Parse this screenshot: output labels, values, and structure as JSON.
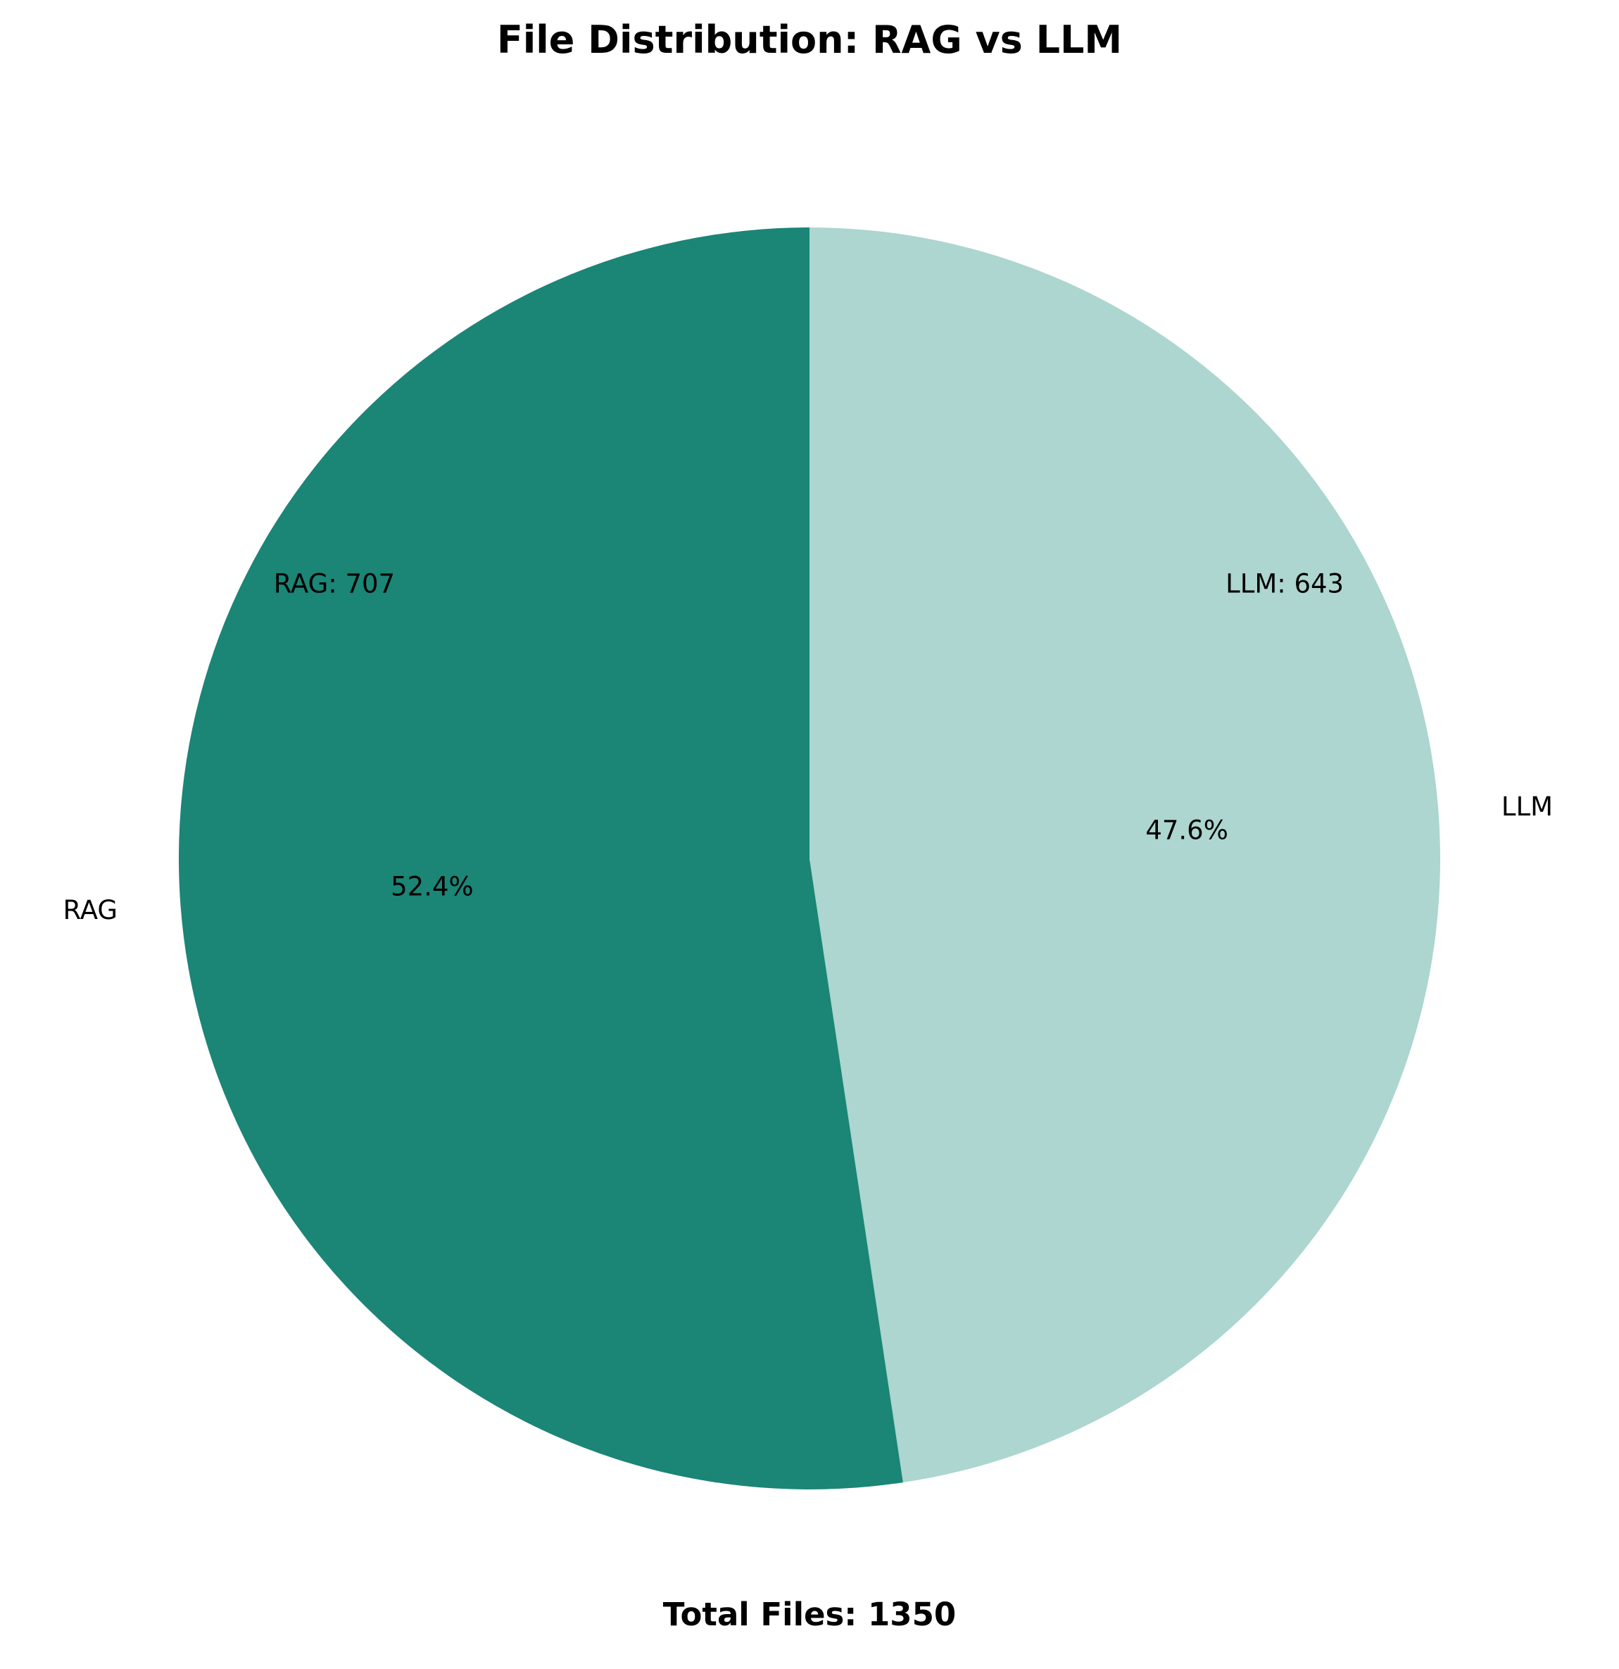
{
  "chart_data": {
    "type": "pie",
    "title": "File Distribution: RAG vs LLM",
    "footer": "Total Files: 1350",
    "start_angle_deg": 90,
    "direction": "counterclockwise",
    "slices": [
      {
        "label": "RAG",
        "value": 707,
        "percent_label": "52.4%",
        "count_label": "RAG: 707",
        "color": "#1b8576"
      },
      {
        "label": "LLM",
        "value": 643,
        "percent_label": "47.6%",
        "count_label": "LLM: 643",
        "color": "#acd6cf"
      }
    ]
  }
}
